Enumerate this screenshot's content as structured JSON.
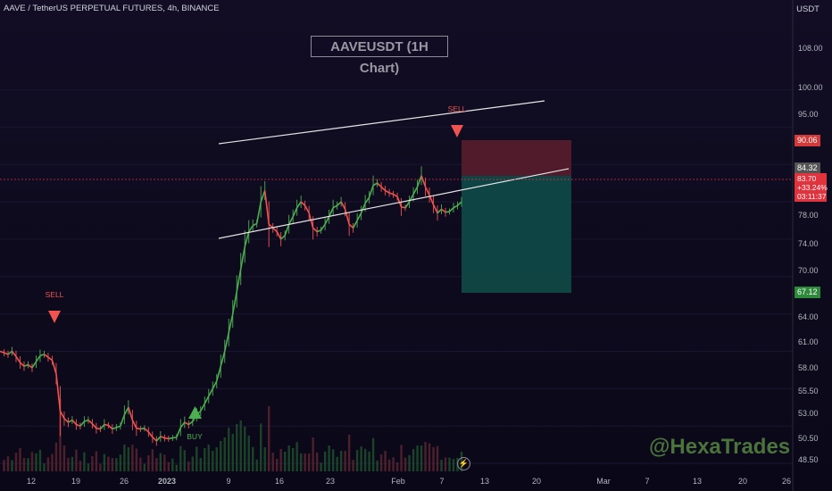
{
  "header": {
    "symbol": "AAVE / TetherUS PERPETUAL FUTURES, 4h, BINANCE",
    "currency": "USDT",
    "chart_title": "AAVEUSDT (1H Chart)",
    "watermark": "@HexaTrades"
  },
  "price_axis": {
    "labels": [
      "108.00",
      "100.00",
      "95.00",
      "78.00",
      "74.00",
      "70.00",
      "64.00",
      "61.00",
      "58.00",
      "55.50",
      "53.00",
      "50.50",
      "48.50"
    ]
  },
  "time_axis": {
    "labels": [
      "12",
      "19",
      "26",
      "2023",
      "9",
      "16",
      "23",
      "Feb",
      "7",
      "13",
      "20",
      "Mar",
      "7",
      "13",
      "20",
      "26"
    ]
  },
  "price_tags": {
    "stop": "90.06",
    "entry": "84.32",
    "target": "67.12",
    "live_price": "83.70",
    "live_change": "+33.24%",
    "live_countdown": "03:11:37"
  },
  "markers": {
    "sell_1": "SELL",
    "buy": "BUY",
    "sell_2": "SELL"
  },
  "colors": {
    "up": "#4caf50",
    "down": "#ef5350",
    "stop_zone": "#5a1d2e",
    "target_zone": "#0f4a48",
    "channel": "#e6e6e6"
  },
  "chart_data": {
    "type": "line",
    "series": [
      {
        "values": [
          65,
          64.8,
          64.6,
          65,
          64.3,
          63.5,
          63,
          63.2,
          62.8,
          63.6,
          64.4,
          64.6,
          64.2,
          63.8,
          62,
          57,
          56,
          55.5,
          55.8,
          55.2,
          55,
          55.6,
          55.8,
          55.3,
          54.7,
          54.6,
          55.2,
          55.1,
          54.6,
          54.8,
          55,
          56.5,
          57.5,
          55.8,
          54.7,
          54.6,
          54.7,
          54.2,
          53.5,
          53,
          53.6,
          53.4,
          53.3,
          53.4,
          53.5,
          54.8,
          55.5,
          55.2,
          55.6,
          56.5,
          57,
          58,
          59,
          60,
          61,
          63,
          65,
          67.5,
          70,
          73,
          76,
          79,
          81,
          81.8,
          82.1,
          85,
          86.5,
          82,
          81.5,
          81,
          80,
          80.5,
          82,
          83,
          84.2,
          85,
          84.5,
          83.5,
          81.5,
          81,
          81.2,
          82,
          83,
          84.2,
          84.5,
          85,
          84,
          82,
          81.5,
          82.5,
          83.5,
          84.8,
          85.6,
          87.2,
          87.5,
          87,
          86.5,
          86.2,
          86,
          85.7,
          84.3,
          84.2,
          85,
          86,
          87,
          88.5,
          87,
          85.9,
          84.6,
          83.5,
          84,
          83.6,
          83.7,
          84.2,
          84.5,
          85
        ],
        "up_color": "#4caf50",
        "down_color": "#ef5350"
      }
    ],
    "ylim": [
      47.5,
      112
    ]
  }
}
